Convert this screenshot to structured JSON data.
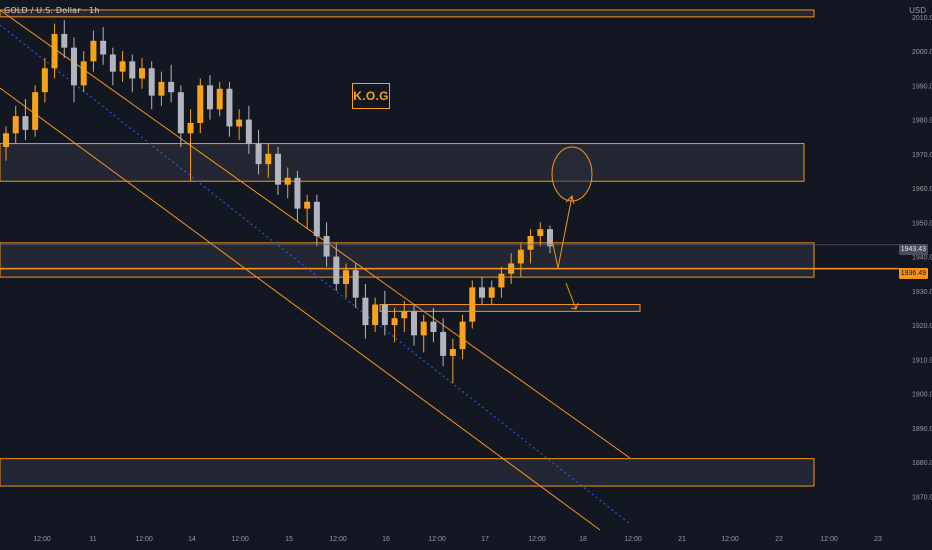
{
  "header": {
    "ticker": "GOLD / U.S. Dollar · 1h",
    "currency": "USD"
  },
  "watermark": "K.O.G",
  "price_axis": {
    "last_price": "1943.43",
    "marked_level": "1936.49"
  },
  "colors": {
    "background": "#131722",
    "bull_candle": "#f7a21b",
    "bear_candle": "#b2b5be",
    "zone_border": "#f7931a",
    "zone_fill": "#2a2e39",
    "channel_line": "#f7931a",
    "median_line": "#2962ff",
    "projection_arrow": "#f7931a"
  },
  "chart_data": {
    "type": "candlestick",
    "title": "",
    "xlabel": "",
    "ylabel": "",
    "ylim": [
      1866,
      2012
    ],
    "y_ticks": [
      1870,
      1880,
      1890,
      1900,
      1910,
      1920,
      1930,
      1940,
      1950,
      1960,
      1970,
      1980,
      1990,
      2000,
      2010
    ],
    "x_ticks": [
      "12:00",
      "11",
      "12:00",
      "14",
      "12:00",
      "15",
      "12:00",
      "16",
      "12:00",
      "17",
      "12:00",
      "18",
      "12:00",
      "21",
      "12:00",
      "22",
      "12:00",
      "23"
    ],
    "grid": false,
    "series": [
      {
        "values": [
          [
            1972,
            1978,
            1968,
            1976
          ],
          [
            1976,
            1984,
            1973,
            1981
          ],
          [
            1981,
            1986,
            1974,
            1977
          ],
          [
            1977,
            1990,
            1975,
            1988
          ],
          [
            1988,
            1998,
            1985,
            1995
          ],
          [
            1995,
            2008,
            1992,
            2005
          ],
          [
            2005,
            2009,
            1998,
            2001
          ],
          [
            2001,
            2004,
            1985,
            1990
          ],
          [
            1990,
            2000,
            1988,
            1997
          ],
          [
            1997,
            2006,
            1994,
            2003
          ],
          [
            2003,
            2007,
            1996,
            1999
          ],
          [
            1999,
            2001,
            1990,
            1994
          ],
          [
            1994,
            2000,
            1991,
            1997
          ],
          [
            1997,
            1999,
            1988,
            1992
          ],
          [
            1992,
            1998,
            1989,
            1995
          ],
          [
            1995,
            1997,
            1983,
            1987
          ],
          [
            1987,
            1994,
            1984,
            1991
          ],
          [
            1991,
            1996,
            1985,
            1988
          ],
          [
            1988,
            1990,
            1972,
            1976
          ],
          [
            1976,
            1983,
            1962,
            1979
          ],
          [
            1979,
            1992,
            1976,
            1990
          ],
          [
            1990,
            1993,
            1980,
            1983
          ],
          [
            1983,
            1991,
            1981,
            1989
          ],
          [
            1989,
            1991,
            1975,
            1978
          ],
          [
            1978,
            1983,
            1974,
            1980
          ],
          [
            1980,
            1984,
            1970,
            1973
          ],
          [
            1973,
            1977,
            1964,
            1967
          ],
          [
            1967,
            1973,
            1963,
            1970
          ],
          [
            1970,
            1972,
            1958,
            1961
          ],
          [
            1961,
            1966,
            1957,
            1963
          ],
          [
            1963,
            1965,
            1950,
            1954
          ],
          [
            1954,
            1958,
            1948,
            1956
          ],
          [
            1956,
            1958,
            1943,
            1946
          ],
          [
            1946,
            1950,
            1937,
            1940
          ],
          [
            1940,
            1944,
            1930,
            1932
          ],
          [
            1932,
            1938,
            1928,
            1936
          ],
          [
            1936,
            1938,
            1925,
            1928
          ],
          [
            1928,
            1932,
            1916,
            1920
          ],
          [
            1920,
            1928,
            1918,
            1926
          ],
          [
            1926,
            1930,
            1917,
            1920
          ],
          [
            1920,
            1925,
            1915,
            1922
          ],
          [
            1922,
            1927,
            1918,
            1924
          ],
          [
            1924,
            1926,
            1914,
            1917
          ],
          [
            1917,
            1923,
            1912,
            1921
          ],
          [
            1921,
            1925,
            1915,
            1918
          ],
          [
            1918,
            1922,
            1908,
            1911
          ],
          [
            1911,
            1916,
            1903,
            1913
          ],
          [
            1913,
            1923,
            1910,
            1921
          ],
          [
            1921,
            1933,
            1919,
            1931
          ],
          [
            1931,
            1934,
            1926,
            1928
          ],
          [
            1928,
            1933,
            1926,
            1931
          ],
          [
            1931,
            1937,
            1928,
            1935
          ],
          [
            1935,
            1941,
            1932,
            1938
          ],
          [
            1938,
            1944,
            1934,
            1942
          ],
          [
            1942,
            1948,
            1938,
            1946
          ],
          [
            1946,
            1950,
            1943,
            1948
          ],
          [
            1948,
            1949,
            1941,
            1943
          ]
        ]
      }
    ],
    "zones": [
      {
        "top": 2012,
        "bottom": 2010
      },
      {
        "top": 1973,
        "bottom": 1962
      },
      {
        "top": 1944,
        "bottom": 1934
      },
      {
        "top": 1926,
        "bottom": 1924
      },
      {
        "top": 1881,
        "bottom": 1873
      }
    ],
    "horizontal_level": 1936.49
  }
}
